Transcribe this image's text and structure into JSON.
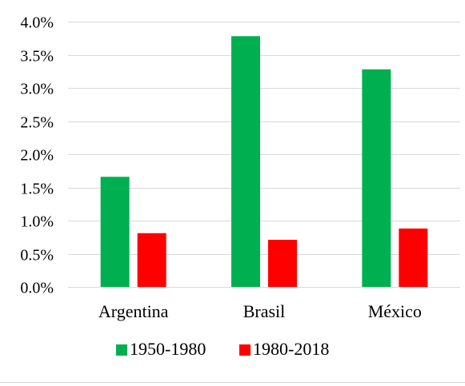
{
  "chart_data": {
    "type": "bar",
    "title": "",
    "xlabel": "",
    "ylabel": "",
    "categories": [
      "Argentina",
      "Brasil",
      "México"
    ],
    "series": [
      {
        "name": "1950-1980",
        "color": "#00b050",
        "values": [
          1.66,
          3.78,
          3.28
        ]
      },
      {
        "name": "1980-2018",
        "color": "#ff0000",
        "values": [
          0.81,
          0.71,
          0.88
        ]
      }
    ],
    "ylim": [
      0,
      4
    ],
    "yticks": [
      0,
      0.5,
      1.0,
      1.5,
      2.0,
      2.5,
      3.0,
      3.5,
      4.0
    ],
    "ytick_labels": [
      "0.0%",
      "0.5%",
      "1.0%",
      "1.5%",
      "2.0%",
      "2.5%",
      "3.0%",
      "3.5%",
      "4.0%"
    ],
    "y_unit": "%",
    "grid": true,
    "legend_position": "bottom",
    "gridline_color": "#d9d9d9"
  }
}
